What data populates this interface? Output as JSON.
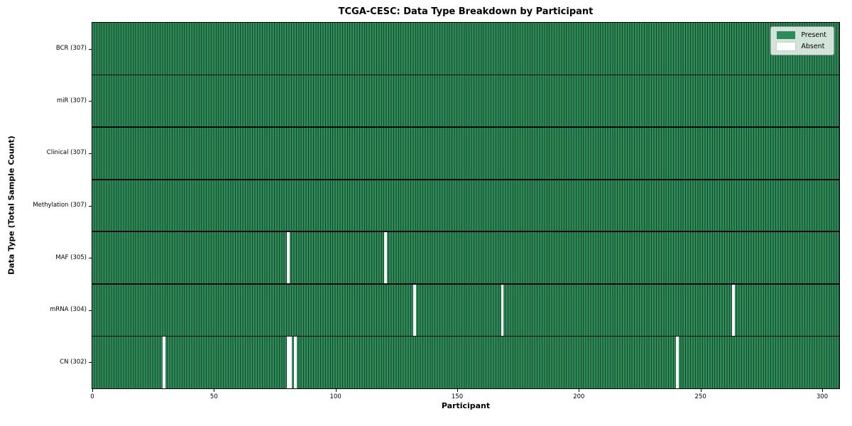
{
  "chart_data": {
    "type": "heatmap",
    "title": "TCGA-CESC: Data Type Breakdown by Participant",
    "xlabel": "Participant",
    "ylabel": "Data Type (Total Sample Count)",
    "n_participants": 307,
    "x_ticks": [
      0,
      50,
      100,
      150,
      200,
      250,
      300
    ],
    "x_range": [
      0,
      307
    ],
    "grid": false,
    "legend_position": "upper right",
    "legend": [
      {
        "label": "Present",
        "color": "#2e8b57"
      },
      {
        "label": "Absent",
        "color": "#ffffff"
      }
    ],
    "rows": [
      {
        "label": "BCR (307)",
        "data_type": "BCR",
        "total_samples": 307,
        "absent_participants": []
      },
      {
        "label": "miR (307)",
        "data_type": "miR",
        "total_samples": 307,
        "absent_participants": []
      },
      {
        "label": "Clinical (307)",
        "data_type": "Clinical",
        "total_samples": 307,
        "absent_participants": []
      },
      {
        "label": "Methylation (307)",
        "data_type": "Methylation",
        "total_samples": 307,
        "absent_participants": []
      },
      {
        "label": "MAF (305)",
        "data_type": "MAF",
        "total_samples": 305,
        "absent_participants": [
          80,
          120
        ]
      },
      {
        "label": "mRNA (304)",
        "data_type": "mRNA",
        "total_samples": 304,
        "absent_participants": [
          132,
          168,
          263
        ]
      },
      {
        "label": "CN (302)",
        "data_type": "CN",
        "total_samples": 302,
        "absent_participants": [
          29,
          80,
          81,
          83,
          240
        ]
      }
    ],
    "colors": {
      "present": "#2e8b57",
      "cell_edge": "#17462c",
      "absent": "#ffffff",
      "row_divider": "#0b0b0b"
    }
  }
}
